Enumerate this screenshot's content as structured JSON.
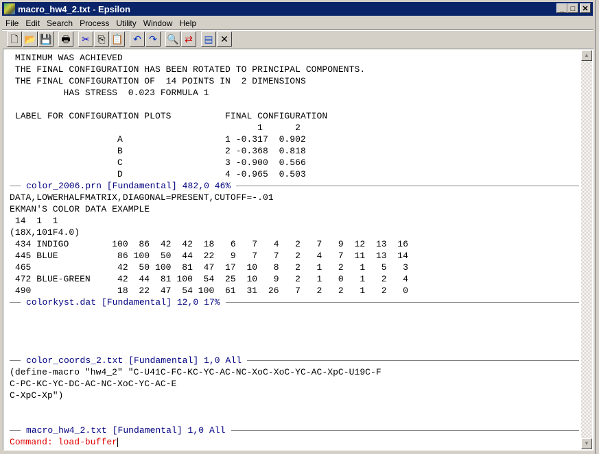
{
  "window": {
    "title": "macro_hw4_2.txt - Epsilon",
    "controls": {
      "minimize": "_",
      "maximize": "□",
      "close": "✕"
    }
  },
  "menu": [
    "File",
    "Edit",
    "Search",
    "Process",
    "Utility",
    "Window",
    "Help"
  ],
  "toolbar": [
    {
      "icon": "new-file-icon",
      "glyph": "🗋"
    },
    {
      "icon": "open-folder-icon",
      "glyph": "📂"
    },
    {
      "icon": "save-icon",
      "glyph": "💾"
    },
    {
      "icon": "print-icon",
      "glyph": "🖶"
    },
    {
      "icon": "cut-icon",
      "glyph": "✂"
    },
    {
      "icon": "copy-icon",
      "glyph": "⎘"
    },
    {
      "icon": "paste-icon",
      "glyph": "📋"
    },
    {
      "icon": "undo-icon",
      "glyph": "↶"
    },
    {
      "icon": "redo-icon",
      "glyph": "↷"
    },
    {
      "icon": "search-icon",
      "glyph": "🔍"
    },
    {
      "icon": "replace-icon",
      "glyph": "⇄"
    },
    {
      "icon": "window-icon",
      "glyph": "▤"
    },
    {
      "icon": "close-buffer-icon",
      "glyph": "✕"
    }
  ],
  "buffers": [
    {
      "lines": [
        " MINIMUM WAS ACHIEVED",
        " THE FINAL CONFIGURATION HAS BEEN ROTATED TO PRINCIPAL COMPONENTS.",
        " THE FINAL CONFIGURATION OF  14 POINTS IN  2 DIMENSIONS",
        "          HAS STRESS  0.023 FORMULA 1",
        "",
        " LABEL FOR CONFIGURATION PLOTS          FINAL CONFIGURATION",
        "                                              1      2",
        "                    A                   1 -0.317  0.902",
        "                    B                   2 -0.368  0.818",
        "                    C                   3 -0.900  0.566",
        "                    D                   4 -0.965  0.503"
      ],
      "modeline": "color_2006.prn [Fundamental] 482,0 46%"
    },
    {
      "lines": [
        "DATA,LOWERHALFMATRIX,DIAGONAL=PRESENT,CUTOFF=-.01",
        "EKMAN'S COLOR DATA EXAMPLE",
        " 14  1  1",
        "(18X,101F4.0)",
        " 434 INDIGO        100  86  42  42  18   6   7   4   2   7   9  12  13  16",
        " 445 BLUE           86 100  50  44  22   9   7   7   2   4   7  11  13  14",
        " 465                42  50 100  81  47  17  10   8   2   1   2   1   5   3",
        " 472 BLUE-GREEN     42  44  81 100  54  25  10   9   2   1   0   1   2   4",
        " 490                18  22  47  54 100  61  31  26   7   2   2   1   2   0"
      ],
      "modeline": "colorkyst.dat [Fundamental] 12,0 17%"
    },
    {
      "lines": [
        "",
        "",
        "",
        ""
      ],
      "modeline": "color_coords_2.txt [Fundamental] 1,0 All"
    },
    {
      "lines": [
        "(define-macro \"hw4_2\" \"C-U41C-FC-KC-YC-AC-NC-XoC-XoC-YC-AC-XpC-U19C-F",
        "C-PC-KC-YC-DC-AC-NC-XoC-YC-AC-E",
        "C-XpC-Xp\")",
        "",
        ""
      ],
      "modeline": "macro_hw4_2.txt [Fundamental] 1,0 All"
    }
  ],
  "command_line": "Command: load-buffer",
  "colors": {
    "titlebar": "#0a246a",
    "modeline_text": "#000080",
    "command_text": "#e00000"
  }
}
